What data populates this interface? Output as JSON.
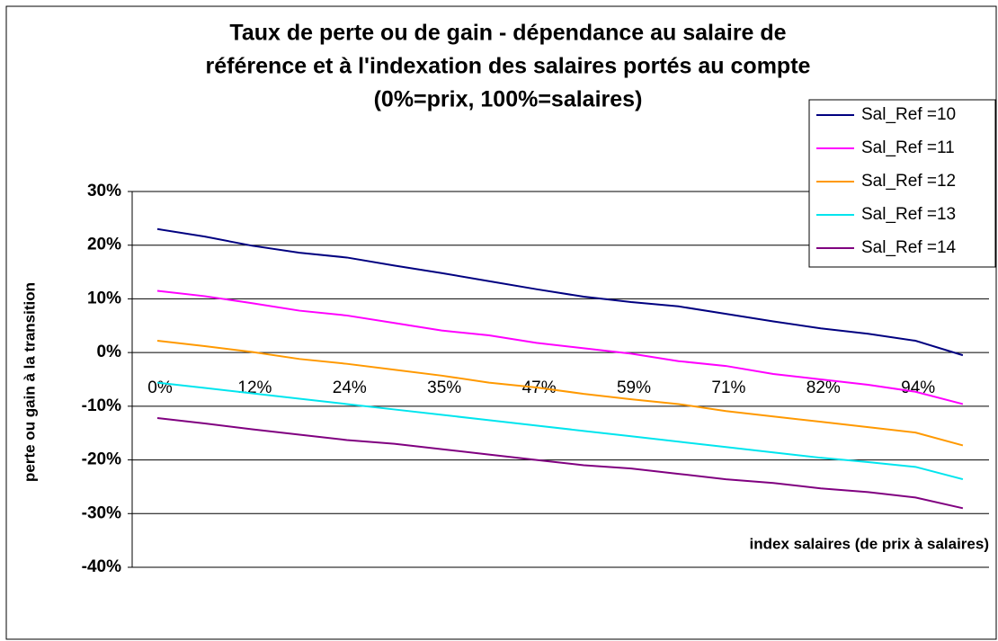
{
  "chart_data": {
    "type": "line",
    "title": [
      "Taux de perte ou de gain - dépendance au salaire de",
      "référence et à l'indexation des salaires portés au compte",
      "(0%=prix, 100%=salaires)"
    ],
    "x_label": "index salaires (de prix à salaires)",
    "y_label": "perte ou gain à la transition",
    "categories": [
      "0%",
      null,
      "12%",
      null,
      "24%",
      null,
      "35%",
      null,
      "47%",
      null,
      "59%",
      null,
      "71%",
      null,
      "82%",
      null,
      "94%",
      null
    ],
    "series": [
      {
        "name": "Sal_Ref =10",
        "color": "#000080",
        "values": [
          23,
          21.6,
          19.9,
          18.6,
          17.7,
          16.2,
          14.8,
          13.3,
          11.8,
          10.4,
          9.4,
          8.6,
          7.2,
          5.8,
          4.5,
          3.5,
          2.2,
          -0.5
        ]
      },
      {
        "name": "Sal_Ref =11",
        "color": "#ff00ff",
        "values": [
          11.5,
          10.5,
          9.2,
          7.8,
          6.9,
          5.5,
          4.1,
          3.2,
          1.8,
          0.8,
          -0.2,
          -1.6,
          -2.5,
          -4,
          -5,
          -6,
          -7.3,
          -9.6
        ]
      },
      {
        "name": "Sal_Ref =12",
        "color": "#ff9900",
        "values": [
          2.2,
          1.2,
          0.1,
          -1.2,
          -2.1,
          -3.2,
          -4.3,
          -5.6,
          -6.5,
          -7.7,
          -8.7,
          -9.6,
          -10.9,
          -11.9,
          -12.9,
          -13.9,
          -14.9,
          -17.3
        ]
      },
      {
        "name": "Sal_Ref =13",
        "color": "#00e5ee",
        "values": [
          -5.6,
          -6.6,
          -7.6,
          -8.6,
          -9.6,
          -10.6,
          -11.6,
          -12.6,
          -13.6,
          -14.6,
          -15.6,
          -16.6,
          -17.6,
          -18.6,
          -19.6,
          -20.4,
          -21.3,
          -23.6
        ]
      },
      {
        "name": "Sal_Ref =14",
        "color": "#800080",
        "values": [
          -12.2,
          -13.2,
          -14.3,
          -15.3,
          -16.3,
          -17,
          -18,
          -19,
          -20,
          -21,
          -21.6,
          -22.6,
          -23.6,
          -24.3,
          -25.3,
          -26,
          -27,
          -29
        ]
      }
    ],
    "ylim": [
      -40,
      30
    ],
    "yticks": [
      {
        "value": -40,
        "label": "-40%"
      },
      {
        "value": -30,
        "label": "-30%"
      },
      {
        "value": -20,
        "label": "-20%"
      },
      {
        "value": -10,
        "label": "-10%"
      },
      {
        "value": 0,
        "label": "0%"
      },
      {
        "value": 10,
        "label": "10%"
      },
      {
        "value": 20,
        "label": "20%"
      },
      {
        "value": 30,
        "label": "30%"
      }
    ],
    "grid": true,
    "legend": "top-right"
  }
}
